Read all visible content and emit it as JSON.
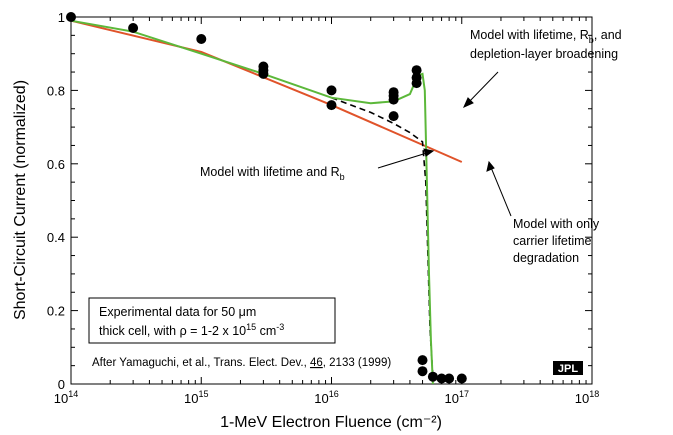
{
  "chart_data": {
    "type": "scatter",
    "title": "",
    "xlabel": "1-MeV Electron Fluence (cm⁻²)",
    "ylabel": "Short-Circuit Current (normalized)",
    "xscale": "log",
    "xlim": [
      100000000000000.0,
      1e+18
    ],
    "ylim": [
      0,
      1
    ],
    "x_ticks": [
      {
        "mantissa": "10",
        "exp": "14"
      },
      {
        "mantissa": "10",
        "exp": "15"
      },
      {
        "mantissa": "10",
        "exp": "16"
      },
      {
        "mantissa": "10",
        "exp": "17"
      },
      {
        "mantissa": "10",
        "exp": "18"
      }
    ],
    "y_ticks": [
      "0",
      "0.2",
      "0.4",
      "0.6",
      "0.8",
      "1"
    ],
    "colors": {
      "lifetime_rb_depletion": "#5cb83a",
      "lifetime_rb": "#000000",
      "lifetime_only": "#e0532a",
      "points": "#000000"
    },
    "points": [
      [
        100000000000000.0,
        1.0
      ],
      [
        300000000000000.0,
        0.97
      ],
      [
        1000000000000000.0,
        0.94
      ],
      [
        3000000000000000.0,
        0.865
      ],
      [
        3000000000000000.0,
        0.855
      ],
      [
        3000000000000000.0,
        0.845
      ],
      [
        1e+16,
        0.8
      ],
      [
        1e+16,
        0.76
      ],
      [
        3e+16,
        0.795
      ],
      [
        3e+16,
        0.785
      ],
      [
        3e+16,
        0.775
      ],
      [
        3e+16,
        0.73
      ],
      [
        4.5e+16,
        0.855
      ],
      [
        4.5e+16,
        0.835
      ],
      [
        4.5e+16,
        0.82
      ],
      [
        5e+16,
        0.065
      ],
      [
        5e+16,
        0.035
      ],
      [
        6e+16,
        0.02
      ],
      [
        7e+16,
        0.015
      ],
      [
        8e+16,
        0.015
      ],
      [
        1e+17,
        0.015
      ]
    ],
    "series": [
      {
        "style": "solid",
        "points": [
          [
            100000000000000.0,
            0.99
          ],
          [
            300000000000000.0,
            0.96
          ],
          [
            1000000000000000.0,
            0.9
          ],
          [
            3000000000000000.0,
            0.845
          ],
          [
            1e+16,
            0.78
          ],
          [
            2e+16,
            0.765
          ],
          [
            3e+16,
            0.77
          ],
          [
            4e+16,
            0.79
          ],
          [
            4.6e+16,
            0.84
          ],
          [
            5e+16,
            0.845
          ],
          [
            5.2e+16,
            0.8
          ],
          [
            5.4e+16,
            0.55
          ],
          [
            5.6e+16,
            0.3
          ],
          [
            5.8e+16,
            0.12
          ],
          [
            6e+16,
            0.0
          ]
        ]
      },
      {
        "style": "dashed",
        "points": [
          [
            1e+16,
            0.78
          ],
          [
            2e+16,
            0.74
          ],
          [
            3e+16,
            0.71
          ],
          [
            4e+16,
            0.685
          ],
          [
            5e+16,
            0.66
          ],
          [
            5.3e+16,
            0.55
          ],
          [
            5.5e+16,
            0.35
          ],
          [
            5.7e+16,
            0.15
          ],
          [
            6e+16,
            0.02
          ]
        ]
      },
      {
        "style": "solid",
        "points": [
          [
            100000000000000.0,
            0.99
          ],
          [
            1000000000000000.0,
            0.905
          ],
          [
            1e+16,
            0.76
          ],
          [
            1e+17,
            0.605
          ]
        ]
      }
    ],
    "annotations": {
      "model_full_line1": "Model with lifetime, R",
      "model_full_sub": "b",
      "model_full_line1_end": ", and",
      "model_full_line2": "depletion-layer broadening",
      "model_rb": "Model with lifetime and R",
      "model_rb_sub": "b",
      "model_only_line1": "Model with only",
      "model_only_line2": "carrier lifetime",
      "model_only_line3": "degradation",
      "box_line1": "Experimental data for 50 μm",
      "box_line2_a": "thick cell, with ρ = 1-2 x 10",
      "box_line2_exp": "15",
      "box_line2_b": " cm",
      "box_line2_exp2": "-3",
      "citation_a": "After Yamaguchi, et al., Trans. Elect. Dev., ",
      "citation_vol": "46",
      "citation_b": ", 2133 (1999)",
      "logo": "JPL"
    }
  }
}
